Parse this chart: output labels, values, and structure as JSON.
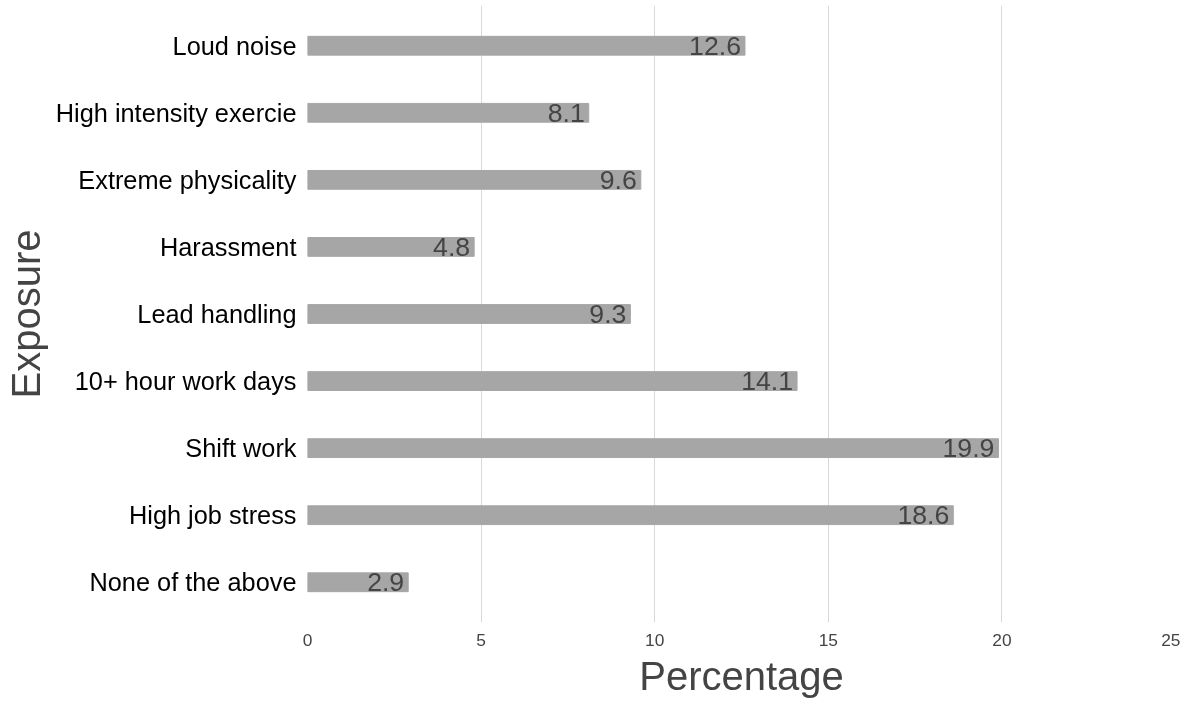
{
  "chart_data": {
    "type": "bar",
    "orientation": "horizontal",
    "xlabel": "Percentage",
    "ylabel": "Exposure",
    "categories": [
      "Loud noise",
      "High intensity exercie",
      "Extreme physicality",
      "Harassment",
      "Lead handling",
      "10+ hour work days",
      "Shift work",
      "High job stress",
      "None of the above"
    ],
    "values": [
      12.6,
      8.1,
      9.6,
      4.8,
      9.3,
      14.1,
      19.9,
      18.6,
      2.9
    ],
    "color": "#a6a6a6",
    "xlim": [
      0,
      25
    ],
    "xticks": [
      0,
      5,
      10,
      15,
      20,
      25
    ],
    "grid": "x",
    "data_labels": true
  }
}
